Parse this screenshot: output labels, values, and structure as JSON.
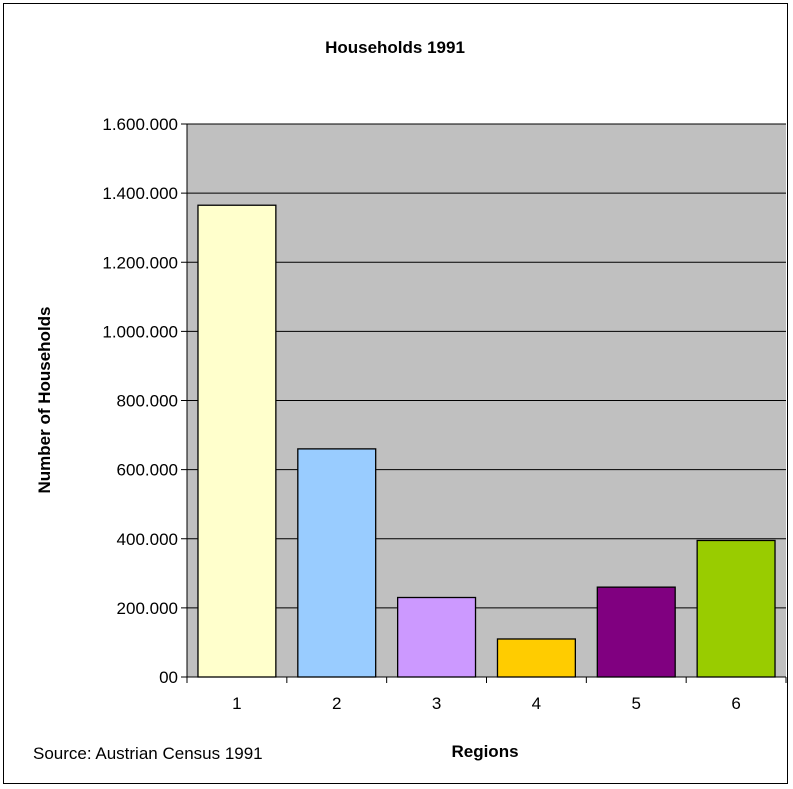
{
  "chart_data": {
    "type": "bar",
    "title": "Households 1991",
    "xlabel": "Regions",
    "ylabel": "Number of Households",
    "categories": [
      "1",
      "2",
      "3",
      "4",
      "5",
      "6"
    ],
    "values": [
      1365000,
      660000,
      230000,
      110000,
      260000,
      395000
    ],
    "colors": [
      "#FFFFCC",
      "#99CCFF",
      "#CC99FF",
      "#FFCC00",
      "#800080",
      "#99CC00"
    ],
    "ylim": [
      0,
      1600000
    ],
    "yticks": [
      0,
      200000,
      400000,
      600000,
      800000,
      1000000,
      1200000,
      1400000,
      1600000
    ],
    "ytick_labels": [
      "00",
      "200.000",
      "400.000",
      "600.000",
      "800.000",
      "1.000.000",
      "1.200.000",
      "1.400.000",
      "1.600.000"
    ],
    "grid": true,
    "plot_background": "#C0C0C0",
    "legend": "none",
    "source_note": "Source: Austrian Census 1991"
  }
}
